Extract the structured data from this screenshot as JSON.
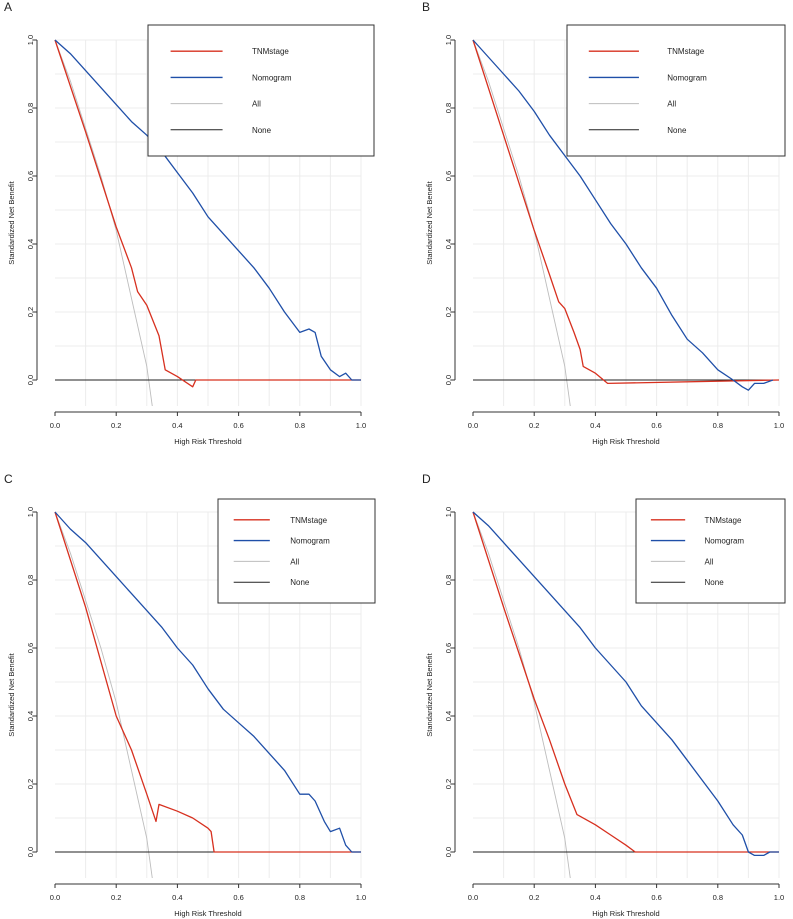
{
  "figure": {
    "panel_count": 4
  },
  "chart_data": [
    {
      "type": "line",
      "panel_label": "A",
      "xlabel": "High Risk Threshold",
      "ylabel": "Standardized Net Benefit",
      "xlim": [
        0,
        1
      ],
      "ylim": [
        -0.1,
        1.0
      ],
      "xticks": [
        "0.0",
        "0.2",
        "0.4",
        "0.6",
        "0.8",
        "1.0"
      ],
      "yticks": [
        "0.0",
        "0.2",
        "0.4",
        "0.6",
        "0.8",
        "1.0"
      ],
      "grid": true,
      "legend_position": "top-right",
      "series": [
        {
          "name": "TNMstage",
          "color": "#d7301f",
          "x": [
            0,
            0.1,
            0.2,
            0.25,
            0.27,
            0.3,
            0.34,
            0.36,
            0.4,
            0.45,
            0.46,
            1.0
          ],
          "y": [
            1.0,
            0.73,
            0.45,
            0.33,
            0.26,
            0.22,
            0.13,
            0.03,
            0.01,
            -0.02,
            0,
            0
          ]
        },
        {
          "name": "Nomogram",
          "color": "#1f4fa8",
          "x": [
            0,
            0.05,
            0.1,
            0.15,
            0.2,
            0.25,
            0.3,
            0.35,
            0.4,
            0.45,
            0.5,
            0.55,
            0.6,
            0.65,
            0.7,
            0.75,
            0.8,
            0.83,
            0.85,
            0.87,
            0.9,
            0.93,
            0.95,
            0.97,
            1.0
          ],
          "y": [
            1.0,
            0.96,
            0.91,
            0.86,
            0.81,
            0.76,
            0.72,
            0.67,
            0.61,
            0.55,
            0.48,
            0.43,
            0.38,
            0.33,
            0.27,
            0.2,
            0.14,
            0.15,
            0.14,
            0.07,
            0.03,
            0.01,
            0.02,
            0.0,
            0.0
          ]
        },
        {
          "name": "All",
          "color": "#bdbdbd",
          "x": [
            0,
            0.05,
            0.1,
            0.15,
            0.2,
            0.25,
            0.3,
            0.32
          ],
          "y": [
            1.0,
            0.88,
            0.74,
            0.6,
            0.44,
            0.24,
            0.04,
            -0.09
          ]
        },
        {
          "name": "None",
          "color": "#222222",
          "x": [
            0,
            1
          ],
          "y": [
            0,
            0
          ]
        }
      ]
    },
    {
      "type": "line",
      "panel_label": "B",
      "xlabel": "High Risk Threshold",
      "ylabel": "Standardized Net Benefit",
      "xlim": [
        0,
        1
      ],
      "ylim": [
        -0.1,
        1.0
      ],
      "xticks": [
        "0.0",
        "0.2",
        "0.4",
        "0.6",
        "0.8",
        "1.0"
      ],
      "yticks": [
        "0.0",
        "0.2",
        "0.4",
        "0.6",
        "0.8",
        "1.0"
      ],
      "grid": true,
      "legend_position": "top-right",
      "series": [
        {
          "name": "TNMstage",
          "color": "#d7301f",
          "x": [
            0,
            0.1,
            0.2,
            0.25,
            0.28,
            0.3,
            0.33,
            0.35,
            0.36,
            0.4,
            0.44,
            1.0
          ],
          "y": [
            1.0,
            0.72,
            0.44,
            0.31,
            0.23,
            0.21,
            0.14,
            0.09,
            0.04,
            0.02,
            -0.01,
            0
          ]
        },
        {
          "name": "Nomogram",
          "color": "#1f4fa8",
          "x": [
            0,
            0.05,
            0.1,
            0.15,
            0.2,
            0.25,
            0.3,
            0.35,
            0.4,
            0.45,
            0.5,
            0.55,
            0.6,
            0.65,
            0.7,
            0.75,
            0.8,
            0.85,
            0.88,
            0.9,
            0.92,
            0.95,
            0.98
          ],
          "y": [
            1.0,
            0.95,
            0.9,
            0.85,
            0.79,
            0.72,
            0.66,
            0.6,
            0.53,
            0.46,
            0.4,
            0.33,
            0.27,
            0.19,
            0.12,
            0.08,
            0.03,
            0.0,
            -0.02,
            -0.03,
            -0.01,
            -0.01,
            0.0
          ]
        },
        {
          "name": "All",
          "color": "#bdbdbd",
          "x": [
            0,
            0.05,
            0.1,
            0.15,
            0.2,
            0.25,
            0.3,
            0.32
          ],
          "y": [
            1.0,
            0.88,
            0.74,
            0.6,
            0.44,
            0.24,
            0.04,
            -0.09
          ]
        },
        {
          "name": "None",
          "color": "#222222",
          "x": [
            0,
            1
          ],
          "y": [
            0,
            0
          ]
        }
      ]
    },
    {
      "type": "line",
      "panel_label": "C",
      "xlabel": "High Risk Threshold",
      "ylabel": "Standardized Net Benefit",
      "xlim": [
        0,
        1
      ],
      "ylim": [
        -0.1,
        1.0
      ],
      "xticks": [
        "0.0",
        "0.2",
        "0.4",
        "0.6",
        "0.8",
        "1.0"
      ],
      "yticks": [
        "0.0",
        "0.2",
        "0.4",
        "0.6",
        "0.8",
        "1.0"
      ],
      "grid": true,
      "legend_position": "top-right",
      "series": [
        {
          "name": "TNMstage",
          "color": "#d7301f",
          "x": [
            0,
            0.1,
            0.2,
            0.25,
            0.3,
            0.33,
            0.34,
            0.4,
            0.45,
            0.5,
            0.51,
            0.52,
            1.0
          ],
          "y": [
            1.0,
            0.72,
            0.4,
            0.3,
            0.17,
            0.09,
            0.14,
            0.12,
            0.1,
            0.07,
            0.06,
            0,
            0
          ]
        },
        {
          "name": "Nomogram",
          "color": "#1f4fa8",
          "x": [
            0,
            0.05,
            0.1,
            0.15,
            0.2,
            0.25,
            0.3,
            0.35,
            0.4,
            0.45,
            0.5,
            0.55,
            0.6,
            0.65,
            0.7,
            0.75,
            0.8,
            0.83,
            0.85,
            0.88,
            0.9,
            0.93,
            0.95,
            0.97,
            1.0
          ],
          "y": [
            1.0,
            0.95,
            0.91,
            0.86,
            0.81,
            0.76,
            0.71,
            0.66,
            0.6,
            0.55,
            0.48,
            0.42,
            0.38,
            0.34,
            0.29,
            0.24,
            0.17,
            0.17,
            0.15,
            0.09,
            0.06,
            0.07,
            0.02,
            0.0,
            0.0
          ]
        },
        {
          "name": "All",
          "color": "#bdbdbd",
          "x": [
            0,
            0.05,
            0.1,
            0.15,
            0.2,
            0.25,
            0.3,
            0.32
          ],
          "y": [
            1.0,
            0.88,
            0.74,
            0.6,
            0.44,
            0.24,
            0.04,
            -0.09
          ]
        },
        {
          "name": "None",
          "color": "#222222",
          "x": [
            0,
            1
          ],
          "y": [
            0,
            0
          ]
        }
      ]
    },
    {
      "type": "line",
      "panel_label": "D",
      "xlabel": "High Risk Threshold",
      "ylabel": "Standardized Net Benefit",
      "xlim": [
        0,
        1
      ],
      "ylim": [
        -0.1,
        1.0
      ],
      "xticks": [
        "0.0",
        "0.2",
        "0.4",
        "0.6",
        "0.8",
        "1.0"
      ],
      "yticks": [
        "0.0",
        "0.2",
        "0.4",
        "0.6",
        "0.8",
        "1.0"
      ],
      "grid": true,
      "legend_position": "top-right",
      "series": [
        {
          "name": "TNMstage",
          "color": "#d7301f",
          "x": [
            0,
            0.1,
            0.2,
            0.25,
            0.3,
            0.34,
            0.4,
            0.45,
            0.5,
            0.53,
            1.0
          ],
          "y": [
            1.0,
            0.72,
            0.45,
            0.33,
            0.2,
            0.11,
            0.08,
            0.05,
            0.02,
            0.0,
            0
          ]
        },
        {
          "name": "Nomogram",
          "color": "#1f4fa8",
          "x": [
            0,
            0.05,
            0.1,
            0.15,
            0.2,
            0.25,
            0.3,
            0.35,
            0.4,
            0.45,
            0.5,
            0.55,
            0.6,
            0.65,
            0.7,
            0.75,
            0.8,
            0.85,
            0.88,
            0.9,
            0.92,
            0.95,
            0.97,
            1.0
          ],
          "y": [
            1.0,
            0.96,
            0.91,
            0.86,
            0.81,
            0.76,
            0.71,
            0.66,
            0.6,
            0.55,
            0.5,
            0.43,
            0.38,
            0.33,
            0.27,
            0.21,
            0.15,
            0.08,
            0.05,
            0.0,
            -0.01,
            -0.01,
            0.0,
            0.0
          ]
        },
        {
          "name": "All",
          "color": "#bdbdbd",
          "x": [
            0,
            0.05,
            0.1,
            0.15,
            0.2,
            0.25,
            0.3,
            0.32
          ],
          "y": [
            1.0,
            0.88,
            0.74,
            0.6,
            0.44,
            0.24,
            0.04,
            -0.09
          ]
        },
        {
          "name": "None",
          "color": "#222222",
          "x": [
            0,
            1
          ],
          "y": [
            0,
            0
          ]
        }
      ]
    }
  ]
}
